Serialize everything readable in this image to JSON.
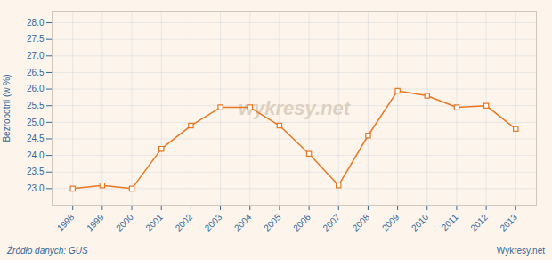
{
  "chart_data": {
    "type": "line",
    "x": [
      1998,
      1999,
      2000,
      2001,
      2002,
      2003,
      2004,
      2005,
      2006,
      2007,
      2008,
      2009,
      2010,
      2011,
      2012,
      2013
    ],
    "values": [
      23.0,
      23.1,
      23.0,
      24.2,
      24.9,
      25.45,
      25.45,
      24.9,
      24.05,
      23.1,
      24.6,
      25.95,
      25.8,
      25.45,
      25.5,
      24.8
    ],
    "color": "#e87722",
    "marker": "square",
    "ylabel": "Bezrobotni (w %)",
    "xlim": [
      1997.3,
      2013.7
    ],
    "xticks": [
      1998,
      1999,
      2000,
      2001,
      2002,
      2003,
      2004,
      2005,
      2006,
      2007,
      2008,
      2009,
      2010,
      2011,
      2012,
      2013
    ],
    "ylim": [
      22.5,
      28.35
    ],
    "yticks": [
      {
        "value": 23.0,
        "label": "23.0"
      },
      23.5,
      {
        "value": 24.0,
        "label": "24.0"
      },
      24.5,
      {
        "value": 25.0,
        "label": "25.0"
      },
      25.5,
      {
        "value": 26.0,
        "label": "26.0"
      },
      26.5,
      {
        "value": 27.0,
        "label": "27.0"
      },
      27.5,
      {
        "value": 28.0,
        "label": "28.0"
      }
    ],
    "grid": true,
    "annotations": [
      "wykresy.net",
      "Źródło danych:  GUS",
      "Wykresy.net"
    ]
  }
}
